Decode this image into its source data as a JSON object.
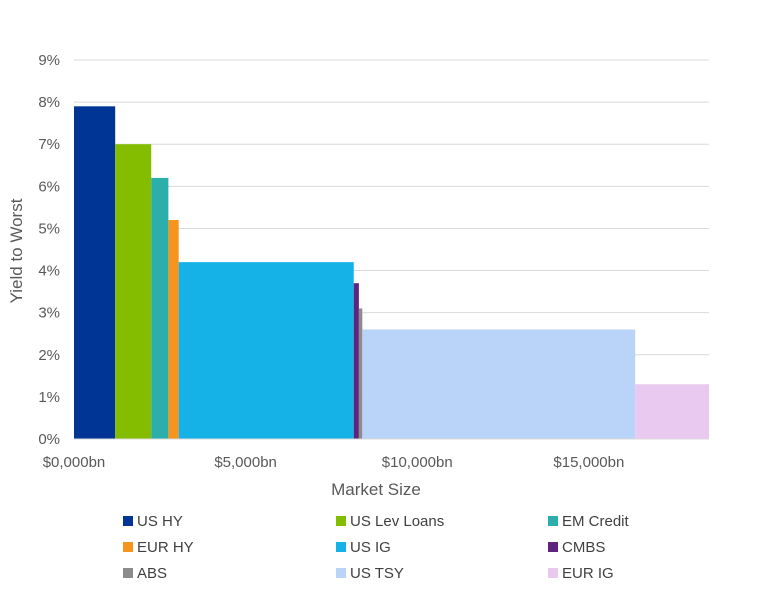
{
  "chart_data": {
    "type": "bar",
    "subtype": "variable-width (marimekko) bar",
    "xlabel": "Market Size",
    "ylabel": "Yield to Worst",
    "xlim": [
      0,
      18500
    ],
    "ylim": [
      0,
      9
    ],
    "x_ticks": [
      {
        "value": 0,
        "label": "$0,000bn"
      },
      {
        "value": 5000,
        "label": "$5,000bn"
      },
      {
        "value": 10000,
        "label": "$10,000bn"
      },
      {
        "value": 15000,
        "label": "$15,000bn"
      }
    ],
    "y_ticks": [
      {
        "value": 0,
        "label": "0%"
      },
      {
        "value": 1,
        "label": "1%"
      },
      {
        "value": 2,
        "label": "2%"
      },
      {
        "value": 3,
        "label": "3%"
      },
      {
        "value": 4,
        "label": "4%"
      },
      {
        "value": 5,
        "label": "5%"
      },
      {
        "value": 6,
        "label": "6%"
      },
      {
        "value": 7,
        "label": "7%"
      },
      {
        "value": 8,
        "label": "8%"
      },
      {
        "value": 9,
        "label": "9%"
      }
    ],
    "grid": true,
    "legend_position": "bottom",
    "series": [
      {
        "name": "US HY",
        "market_size_bn": 1200,
        "yield_pct": 7.9,
        "color": "#003595"
      },
      {
        "name": "US Lev Loans",
        "market_size_bn": 1050,
        "yield_pct": 7.0,
        "color": "#84bd00"
      },
      {
        "name": "EM Credit",
        "market_size_bn": 500,
        "yield_pct": 6.2,
        "color": "#2cafaa"
      },
      {
        "name": "EUR HY",
        "market_size_bn": 300,
        "yield_pct": 5.2,
        "color": "#f7941d"
      },
      {
        "name": "US IG",
        "market_size_bn": 5100,
        "yield_pct": 4.2,
        "color": "#14b2e6"
      },
      {
        "name": "CMBS",
        "market_size_bn": 150,
        "yield_pct": 3.7,
        "color": "#5f2480"
      },
      {
        "name": "ABS",
        "market_size_bn": 100,
        "yield_pct": 3.1,
        "color": "#8c8c8c"
      },
      {
        "name": "US TSY",
        "market_size_bn": 7950,
        "yield_pct": 2.6,
        "color": "#b9d3f9"
      },
      {
        "name": "EUR IG",
        "market_size_bn": 2150,
        "yield_pct": 1.3,
        "color": "#e9c9ef"
      }
    ]
  }
}
